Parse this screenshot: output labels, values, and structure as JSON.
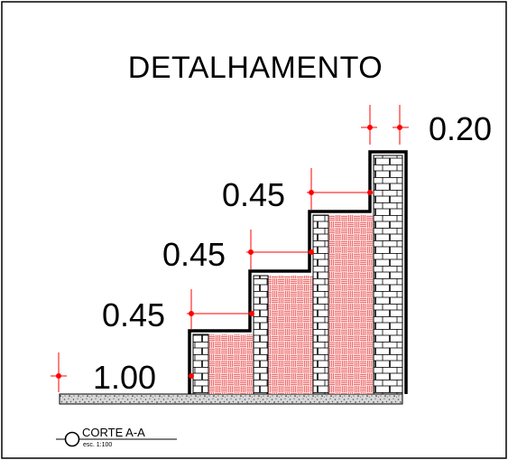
{
  "title": "DETALHAMENTO",
  "section": {
    "label": "CORTE A-A",
    "scale": "esc. 1:100"
  },
  "dimensions": {
    "top_width": "0.20",
    "step_3_height": "0.45",
    "step_2_height": "0.45",
    "step_1_height": "0.45",
    "base": "1.00"
  },
  "colors": {
    "line": "#000000",
    "dimension": "#ff0000",
    "fill_hatch": "#e04848",
    "fill_bg": "#ffd6d6",
    "brick_bg": "#ffffff",
    "ground": "#9a9a9a"
  }
}
